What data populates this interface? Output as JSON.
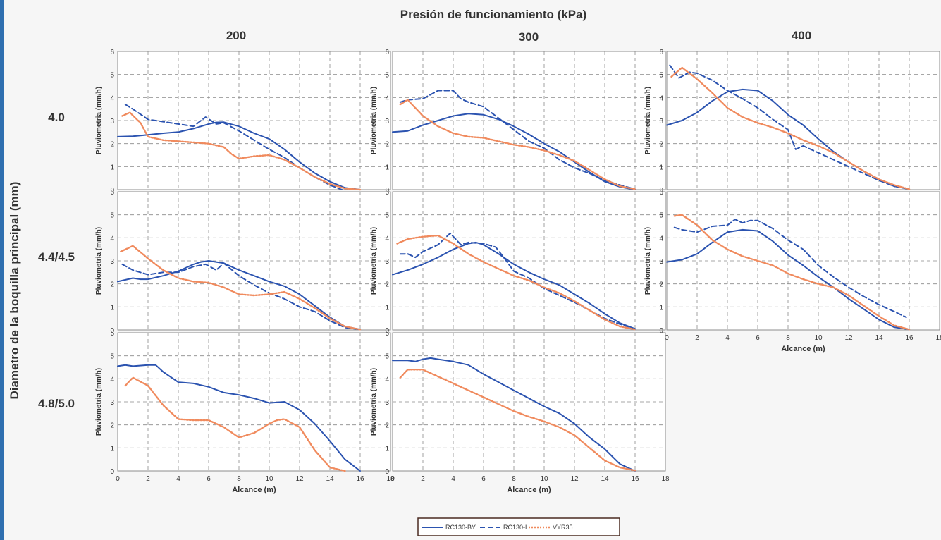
{
  "colors": {
    "rc130by": "#2b53b0",
    "rc130l": "#2b53b0",
    "vyr35": "#f08a5d",
    "edge": "#2f6fb0"
  },
  "chart_data": {
    "type": "line",
    "title": "Presión de funcionamiento (kPa)",
    "column_labels": [
      "200",
      "300",
      "400"
    ],
    "row_labels": [
      "4.0",
      "4.4/4.5",
      "4.8/5.0"
    ],
    "row_axis_title": "Diametro de la boquilla principal (mm)",
    "xlabel": "Alcance (m)",
    "ylabel": "Pluviometria  (mm/h)",
    "xlim": [
      0,
      18
    ],
    "ylim": [
      0,
      6
    ],
    "x_ticks": [
      "0",
      "2",
      "4",
      "6",
      "8",
      "10",
      "12",
      "14",
      "16",
      "18"
    ],
    "y_ticks": [
      "0",
      "1",
      "2",
      "3",
      "4",
      "5",
      "6"
    ],
    "grid": true,
    "legend_position": "bottom-center",
    "legend": [
      "RC130-BY",
      "RC130-L",
      "VYR35"
    ],
    "panels": [
      {
        "row": 0,
        "col": 0,
        "series": [
          {
            "name": "RC130-BY",
            "x": [
              0,
              1,
              2,
              3,
              4,
              5,
              6,
              6.5,
              7,
              8,
              9,
              10,
              11,
              12,
              13,
              14,
              15,
              16
            ],
            "y": [
              2.3,
              2.32,
              2.38,
              2.45,
              2.5,
              2.65,
              2.85,
              2.92,
              2.93,
              2.75,
              2.45,
              2.2,
              1.75,
              1.2,
              0.72,
              0.35,
              0.08,
              0
            ]
          },
          {
            "name": "RC130-L",
            "x": [
              0.5,
              1,
              2,
              3,
              4,
              5,
              5.8,
              6.5,
              7,
              8,
              9,
              10,
              11,
              12,
              13,
              14,
              14.8
            ],
            "y": [
              3.7,
              3.5,
              3.05,
              2.95,
              2.85,
              2.75,
              3.15,
              2.85,
              2.9,
              2.55,
              2.15,
              1.75,
              1.4,
              0.95,
              0.55,
              0.2,
              0
            ]
          },
          {
            "name": "VYR35",
            "x": [
              0.3,
              0.8,
              1.5,
              2,
              3,
              4,
              5,
              6,
              7,
              7.5,
              8,
              9,
              10,
              11,
              12,
              13,
              14,
              15,
              16
            ],
            "y": [
              3.2,
              3.35,
              2.9,
              2.3,
              2.15,
              2.1,
              2.05,
              2.0,
              1.85,
              1.55,
              1.35,
              1.45,
              1.5,
              1.3,
              0.95,
              0.55,
              0.25,
              0.05,
              0
            ]
          }
        ]
      },
      {
        "row": 0,
        "col": 1,
        "series": [
          {
            "name": "RC130-BY",
            "x": [
              0,
              1,
              2,
              3,
              4,
              5,
              6,
              7,
              8,
              9,
              10,
              11,
              12,
              13,
              14,
              15,
              16
            ],
            "y": [
              2.5,
              2.55,
              2.8,
              3.0,
              3.2,
              3.3,
              3.25,
              3.05,
              2.75,
              2.4,
              2.0,
              1.65,
              1.2,
              0.75,
              0.35,
              0.12,
              0
            ]
          },
          {
            "name": "RC130-L",
            "x": [
              0.5,
              1,
              2,
              3,
              4,
              4.5,
              5,
              6,
              7,
              8,
              9,
              10,
              11,
              12,
              13,
              14,
              15,
              16
            ],
            "y": [
              3.8,
              3.9,
              3.95,
              4.3,
              4.3,
              3.95,
              3.8,
              3.6,
              3.1,
              2.6,
              2.1,
              1.8,
              1.3,
              0.95,
              0.7,
              0.4,
              0.2,
              0.02
            ]
          },
          {
            "name": "VYR35",
            "x": [
              0.5,
              1,
              2,
              3,
              4,
              5,
              6,
              7,
              8,
              9,
              10,
              11,
              12,
              13,
              14,
              15,
              16
            ],
            "y": [
              3.7,
              3.9,
              3.2,
              2.75,
              2.45,
              2.3,
              2.25,
              2.1,
              1.95,
              1.85,
              1.7,
              1.5,
              1.25,
              0.85,
              0.45,
              0.15,
              0.02
            ]
          }
        ]
      },
      {
        "row": 0,
        "col": 2,
        "series": [
          {
            "name": "RC130-BY",
            "x": [
              0,
              1,
              2,
              3,
              4,
              5,
              6,
              7,
              8,
              9,
              10,
              11,
              12,
              13,
              14,
              15,
              16
            ],
            "y": [
              2.8,
              3.0,
              3.35,
              3.85,
              4.25,
              4.35,
              4.3,
              3.85,
              3.25,
              2.8,
              2.2,
              1.65,
              1.2,
              0.8,
              0.45,
              0.15,
              0.02
            ]
          },
          {
            "name": "RC130-L",
            "x": [
              0.2,
              0.8,
              1.5,
              2,
              3,
              4,
              5,
              6,
              7,
              8,
              8.5,
              9,
              10,
              11,
              12,
              13,
              14,
              15,
              16
            ],
            "y": [
              5.4,
              4.85,
              5.1,
              5.05,
              4.75,
              4.3,
              3.95,
              3.55,
              3.05,
              2.6,
              1.75,
              1.9,
              1.6,
              1.3,
              1.0,
              0.7,
              0.4,
              0.15,
              0.02
            ]
          },
          {
            "name": "VYR35",
            "x": [
              0.3,
              1,
              2,
              3,
              4,
              5,
              6,
              7,
              8,
              9,
              10,
              11,
              12,
              13,
              14,
              15,
              16
            ],
            "y": [
              4.9,
              5.3,
              4.8,
              4.2,
              3.55,
              3.15,
              2.9,
              2.7,
              2.45,
              2.15,
              1.9,
              1.6,
              1.2,
              0.8,
              0.45,
              0.2,
              0.02
            ]
          }
        ]
      },
      {
        "row": 1,
        "col": 0,
        "series": [
          {
            "name": "RC130-BY",
            "x": [
              0,
              1,
              1.5,
              2,
              3,
              4,
              5,
              5.5,
              6,
              7,
              8,
              9,
              10,
              11,
              12,
              13,
              14,
              15,
              16
            ],
            "y": [
              2.1,
              2.25,
              2.2,
              2.2,
              2.35,
              2.55,
              2.85,
              2.95,
              3.0,
              2.9,
              2.6,
              2.35,
              2.1,
              1.9,
              1.55,
              1.05,
              0.55,
              0.15,
              0.02
            ]
          },
          {
            "name": "RC130-L",
            "x": [
              0.3,
              1,
              2,
              3,
              4,
              5,
              5.8,
              6.5,
              7,
              8,
              9,
              10,
              11,
              12,
              13,
              14,
              15,
              16
            ],
            "y": [
              2.85,
              2.6,
              2.4,
              2.5,
              2.5,
              2.75,
              2.85,
              2.6,
              2.9,
              2.35,
              1.95,
              1.6,
              1.35,
              1.0,
              0.8,
              0.4,
              0.1,
              0.02
            ]
          },
          {
            "name": "VYR35",
            "x": [
              0.2,
              1,
              2,
              3,
              4,
              5,
              6,
              7,
              8,
              9,
              10,
              11,
              12,
              13,
              14,
              15,
              16
            ],
            "y": [
              3.4,
              3.65,
              3.1,
              2.6,
              2.25,
              2.1,
              2.05,
              1.85,
              1.55,
              1.5,
              1.55,
              1.65,
              1.35,
              0.95,
              0.5,
              0.15,
              0.02
            ]
          }
        ]
      },
      {
        "row": 1,
        "col": 1,
        "series": [
          {
            "name": "RC130-BY",
            "x": [
              0,
              1,
              2,
              3,
              4,
              5,
              5.5,
              6,
              7,
              8,
              9,
              10,
              11,
              12,
              13,
              14,
              15,
              16
            ],
            "y": [
              2.4,
              2.6,
              2.85,
              3.15,
              3.5,
              3.75,
              3.8,
              3.7,
              3.3,
              2.85,
              2.5,
              2.2,
              1.95,
              1.55,
              1.15,
              0.7,
              0.3,
              0.05
            ]
          },
          {
            "name": "RC130-L",
            "x": [
              0.5,
              1,
              1.5,
              2,
              3,
              3.8,
              4.5,
              5,
              6,
              6.8,
              7.5,
              8,
              9,
              10,
              11,
              12,
              13,
              14,
              15,
              16
            ],
            "y": [
              3.3,
              3.3,
              3.15,
              3.4,
              3.7,
              4.2,
              3.7,
              3.8,
              3.75,
              3.6,
              3.0,
              2.55,
              2.25,
              1.8,
              1.5,
              1.2,
              0.85,
              0.5,
              0.25,
              0.05
            ]
          },
          {
            "name": "VYR35",
            "x": [
              0.3,
              1,
              2,
              3,
              4,
              5,
              6,
              7,
              8,
              9,
              10,
              11,
              12,
              13,
              14,
              15,
              16
            ],
            "y": [
              3.75,
              3.95,
              4.05,
              4.1,
              3.75,
              3.3,
              2.95,
              2.65,
              2.35,
              2.15,
              1.85,
              1.6,
              1.25,
              0.85,
              0.45,
              0.15,
              0.02
            ]
          }
        ]
      },
      {
        "row": 1,
        "col": 2,
        "series": [
          {
            "name": "RC130-BY",
            "x": [
              0,
              1,
              2,
              3,
              4,
              5,
              6,
              7,
              8,
              9,
              10,
              11,
              12,
              13,
              14,
              15,
              16
            ],
            "y": [
              2.95,
              3.05,
              3.3,
              3.8,
              4.25,
              4.35,
              4.3,
              3.85,
              3.25,
              2.8,
              2.3,
              1.85,
              1.35,
              0.9,
              0.45,
              0.12,
              0.02
            ]
          },
          {
            "name": "RC130-L",
            "x": [
              0.5,
              1,
              2,
              3,
              4,
              4.5,
              5,
              5.5,
              6,
              7,
              8,
              9,
              10,
              11,
              12,
              13,
              14,
              15,
              15.8
            ],
            "y": [
              4.45,
              4.35,
              4.25,
              4.5,
              4.55,
              4.8,
              4.65,
              4.75,
              4.75,
              4.4,
              3.9,
              3.5,
              2.8,
              2.3,
              1.85,
              1.45,
              1.1,
              0.8,
              0.55
            ]
          },
          {
            "name": "VYR35",
            "x": [
              0.5,
              1,
              2,
              3,
              4,
              5,
              6,
              7,
              8,
              9,
              10,
              11,
              12,
              13,
              14,
              15,
              16
            ],
            "y": [
              4.95,
              5.0,
              4.55,
              3.9,
              3.5,
              3.2,
              3.0,
              2.8,
              2.45,
              2.2,
              2.0,
              1.85,
              1.5,
              1.05,
              0.6,
              0.2,
              0.02
            ]
          }
        ]
      },
      {
        "row": 2,
        "col": 0,
        "series": [
          {
            "name": "RC130-BY",
            "x": [
              0,
              0.5,
              1,
              2,
              2.5,
              3,
              4,
              5,
              6,
              7,
              8,
              9,
              10,
              11,
              12,
              13,
              14,
              15,
              16
            ],
            "y": [
              4.55,
              4.6,
              4.55,
              4.6,
              4.6,
              4.3,
              3.85,
              3.8,
              3.65,
              3.4,
              3.3,
              3.15,
              2.95,
              3.0,
              2.65,
              2.05,
              1.3,
              0.5,
              0
            ]
          },
          {
            "name": "RC130-L",
            "x": [],
            "y": []
          },
          {
            "name": "VYR35",
            "x": [
              0.5,
              1,
              2,
              3,
              4,
              5,
              6,
              7,
              8,
              9,
              10,
              10.5,
              11,
              12,
              13,
              14,
              15
            ],
            "y": [
              3.7,
              4.05,
              3.7,
              2.85,
              2.25,
              2.2,
              2.2,
              1.9,
              1.45,
              1.65,
              2.05,
              2.2,
              2.25,
              1.9,
              0.9,
              0.15,
              0
            ]
          }
        ]
      },
      {
        "row": 2,
        "col": 1,
        "series": [
          {
            "name": "RC130-BY",
            "x": [
              0,
              1,
              1.5,
              2,
              2.5,
              3,
              4,
              5,
              6,
              7,
              8,
              9,
              10,
              11,
              12,
              13,
              14,
              15,
              16
            ],
            "y": [
              4.8,
              4.8,
              4.75,
              4.85,
              4.9,
              4.85,
              4.75,
              4.6,
              4.2,
              3.85,
              3.5,
              3.15,
              2.8,
              2.5,
              2.05,
              1.45,
              0.95,
              0.3,
              0
            ]
          },
          {
            "name": "RC130-L",
            "x": [],
            "y": []
          },
          {
            "name": "VYR35",
            "x": [
              0.5,
              1,
              2,
              3,
              4,
              5,
              6,
              7,
              8,
              9,
              10,
              11,
              12,
              13,
              14,
              15,
              16
            ],
            "y": [
              4.05,
              4.4,
              4.4,
              4.1,
              3.8,
              3.5,
              3.2,
              2.9,
              2.6,
              2.35,
              2.15,
              1.9,
              1.55,
              1.0,
              0.45,
              0.15,
              0.02
            ]
          }
        ]
      }
    ]
  }
}
